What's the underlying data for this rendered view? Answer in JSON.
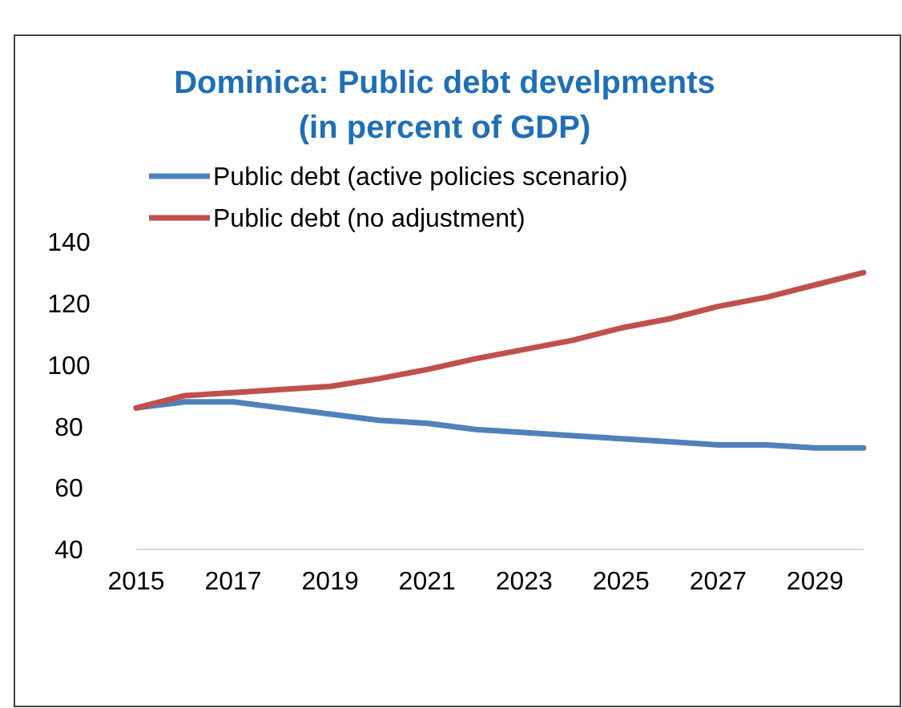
{
  "chart_data": {
    "type": "line",
    "title": "Dominica: Public debt develpments\n(in percent of GDP)",
    "x": [
      2015,
      2016,
      2017,
      2018,
      2019,
      2020,
      2021,
      2022,
      2023,
      2024,
      2025,
      2026,
      2027,
      2028,
      2029,
      2030
    ],
    "series": [
      {
        "name": "Public debt (active policies scenario)",
        "color": "#4f81bd",
        "values": [
          86,
          88,
          88,
          86,
          84,
          82,
          81,
          79,
          78,
          77,
          76,
          75,
          74,
          74,
          73,
          73
        ]
      },
      {
        "name": "Public debt (no adjustment)",
        "color": "#c0504d",
        "values": [
          86,
          90,
          91,
          92,
          93,
          95.5,
          98.5,
          102,
          105,
          108,
          112,
          115,
          119,
          122,
          126,
          130
        ]
      }
    ],
    "xlim": [
      2015,
      2030
    ],
    "xticks": [
      2015,
      2017,
      2019,
      2021,
      2023,
      2025,
      2027,
      2029
    ],
    "ylim": [
      40,
      140
    ],
    "yticks": [
      40,
      60,
      80,
      100,
      120,
      140
    ],
    "grid": false,
    "legend": "top left",
    "marker": "none",
    "line_style": "solid"
  }
}
